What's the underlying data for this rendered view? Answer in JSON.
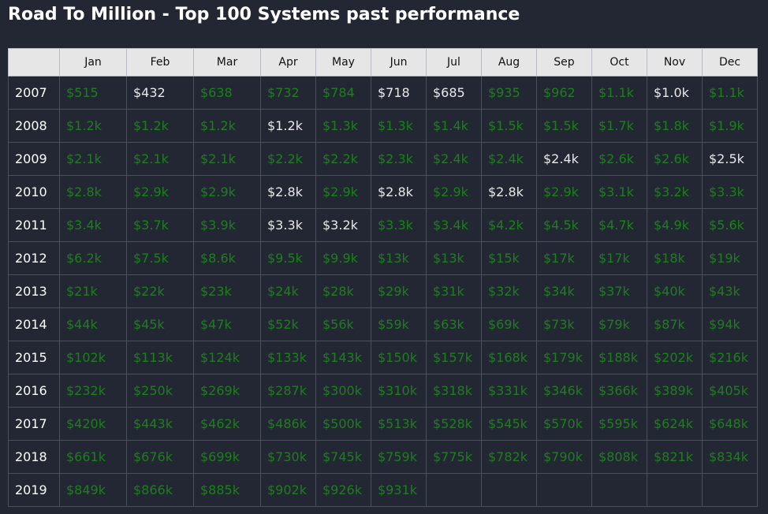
{
  "title": "Road To Million - Top 100 Systems past performance",
  "colors": {
    "up": "#1c7f1c",
    "neutral": "#e8e8e8",
    "header_bg": "#e6e6e6",
    "bg": "#232733"
  },
  "months": [
    "Jan",
    "Feb",
    "Mar",
    "Apr",
    "May",
    "Jun",
    "Jul",
    "Aug",
    "Sep",
    "Oct",
    "Nov",
    "Dec"
  ],
  "rows": [
    {
      "year": "2007",
      "cells": [
        {
          "v": "$515",
          "c": "g"
        },
        {
          "v": "$432",
          "c": "w"
        },
        {
          "v": "$638",
          "c": "g"
        },
        {
          "v": "$732",
          "c": "g"
        },
        {
          "v": "$784",
          "c": "g"
        },
        {
          "v": "$718",
          "c": "w"
        },
        {
          "v": "$685",
          "c": "w"
        },
        {
          "v": "$935",
          "c": "g"
        },
        {
          "v": "$962",
          "c": "g"
        },
        {
          "v": "$1.1k",
          "c": "g"
        },
        {
          "v": "$1.0k",
          "c": "w"
        },
        {
          "v": "$1.1k",
          "c": "g"
        }
      ]
    },
    {
      "year": "2008",
      "cells": [
        {
          "v": "$1.2k",
          "c": "g"
        },
        {
          "v": "$1.2k",
          "c": "g"
        },
        {
          "v": "$1.2k",
          "c": "g"
        },
        {
          "v": "$1.2k",
          "c": "w"
        },
        {
          "v": "$1.3k",
          "c": "g"
        },
        {
          "v": "$1.3k",
          "c": "g"
        },
        {
          "v": "$1.4k",
          "c": "g"
        },
        {
          "v": "$1.5k",
          "c": "g"
        },
        {
          "v": "$1.5k",
          "c": "g"
        },
        {
          "v": "$1.7k",
          "c": "g"
        },
        {
          "v": "$1.8k",
          "c": "g"
        },
        {
          "v": "$1.9k",
          "c": "g"
        }
      ]
    },
    {
      "year": "2009",
      "cells": [
        {
          "v": "$2.1k",
          "c": "g"
        },
        {
          "v": "$2.1k",
          "c": "g"
        },
        {
          "v": "$2.1k",
          "c": "g"
        },
        {
          "v": "$2.2k",
          "c": "g"
        },
        {
          "v": "$2.2k",
          "c": "g"
        },
        {
          "v": "$2.3k",
          "c": "g"
        },
        {
          "v": "$2.4k",
          "c": "g"
        },
        {
          "v": "$2.4k",
          "c": "g"
        },
        {
          "v": "$2.4k",
          "c": "w"
        },
        {
          "v": "$2.6k",
          "c": "g"
        },
        {
          "v": "$2.6k",
          "c": "g"
        },
        {
          "v": "$2.5k",
          "c": "w"
        }
      ]
    },
    {
      "year": "2010",
      "cells": [
        {
          "v": "$2.8k",
          "c": "g"
        },
        {
          "v": "$2.9k",
          "c": "g"
        },
        {
          "v": "$2.9k",
          "c": "g"
        },
        {
          "v": "$2.8k",
          "c": "w"
        },
        {
          "v": "$2.9k",
          "c": "g"
        },
        {
          "v": "$2.8k",
          "c": "w"
        },
        {
          "v": "$2.9k",
          "c": "g"
        },
        {
          "v": "$2.8k",
          "c": "w"
        },
        {
          "v": "$2.9k",
          "c": "g"
        },
        {
          "v": "$3.1k",
          "c": "g"
        },
        {
          "v": "$3.2k",
          "c": "g"
        },
        {
          "v": "$3.3k",
          "c": "g"
        }
      ]
    },
    {
      "year": "2011",
      "cells": [
        {
          "v": "$3.4k",
          "c": "g"
        },
        {
          "v": "$3.7k",
          "c": "g"
        },
        {
          "v": "$3.9k",
          "c": "g"
        },
        {
          "v": "$3.3k",
          "c": "w"
        },
        {
          "v": "$3.2k",
          "c": "w"
        },
        {
          "v": "$3.3k",
          "c": "g"
        },
        {
          "v": "$3.4k",
          "c": "g"
        },
        {
          "v": "$4.2k",
          "c": "g"
        },
        {
          "v": "$4.5k",
          "c": "g"
        },
        {
          "v": "$4.7k",
          "c": "g"
        },
        {
          "v": "$4.9k",
          "c": "g"
        },
        {
          "v": "$5.6k",
          "c": "g"
        }
      ]
    },
    {
      "year": "2012",
      "cells": [
        {
          "v": "$6.2k",
          "c": "g"
        },
        {
          "v": "$7.5k",
          "c": "g"
        },
        {
          "v": "$8.6k",
          "c": "g"
        },
        {
          "v": "$9.5k",
          "c": "g"
        },
        {
          "v": "$9.9k",
          "c": "g"
        },
        {
          "v": "$13k",
          "c": "g"
        },
        {
          "v": "$13k",
          "c": "g"
        },
        {
          "v": "$15k",
          "c": "g"
        },
        {
          "v": "$17k",
          "c": "g"
        },
        {
          "v": "$17k",
          "c": "g"
        },
        {
          "v": "$18k",
          "c": "g"
        },
        {
          "v": "$19k",
          "c": "g"
        }
      ]
    },
    {
      "year": "2013",
      "cells": [
        {
          "v": "$21k",
          "c": "g"
        },
        {
          "v": "$22k",
          "c": "g"
        },
        {
          "v": "$23k",
          "c": "g"
        },
        {
          "v": "$24k",
          "c": "g"
        },
        {
          "v": "$28k",
          "c": "g"
        },
        {
          "v": "$29k",
          "c": "g"
        },
        {
          "v": "$31k",
          "c": "g"
        },
        {
          "v": "$32k",
          "c": "g"
        },
        {
          "v": "$34k",
          "c": "g"
        },
        {
          "v": "$37k",
          "c": "g"
        },
        {
          "v": "$40k",
          "c": "g"
        },
        {
          "v": "$43k",
          "c": "g"
        }
      ]
    },
    {
      "year": "2014",
      "cells": [
        {
          "v": "$44k",
          "c": "g"
        },
        {
          "v": "$45k",
          "c": "g"
        },
        {
          "v": "$47k",
          "c": "g"
        },
        {
          "v": "$52k",
          "c": "g"
        },
        {
          "v": "$56k",
          "c": "g"
        },
        {
          "v": "$59k",
          "c": "g"
        },
        {
          "v": "$63k",
          "c": "g"
        },
        {
          "v": "$69k",
          "c": "g"
        },
        {
          "v": "$73k",
          "c": "g"
        },
        {
          "v": "$79k",
          "c": "g"
        },
        {
          "v": "$87k",
          "c": "g"
        },
        {
          "v": "$94k",
          "c": "g"
        }
      ]
    },
    {
      "year": "2015",
      "cells": [
        {
          "v": "$102k",
          "c": "g"
        },
        {
          "v": "$113k",
          "c": "g"
        },
        {
          "v": "$124k",
          "c": "g"
        },
        {
          "v": "$133k",
          "c": "g"
        },
        {
          "v": "$143k",
          "c": "g"
        },
        {
          "v": "$150k",
          "c": "g"
        },
        {
          "v": "$157k",
          "c": "g"
        },
        {
          "v": "$168k",
          "c": "g"
        },
        {
          "v": "$179k",
          "c": "g"
        },
        {
          "v": "$188k",
          "c": "g"
        },
        {
          "v": "$202k",
          "c": "g"
        },
        {
          "v": "$216k",
          "c": "g"
        }
      ]
    },
    {
      "year": "2016",
      "cells": [
        {
          "v": "$232k",
          "c": "g"
        },
        {
          "v": "$250k",
          "c": "g"
        },
        {
          "v": "$269k",
          "c": "g"
        },
        {
          "v": "$287k",
          "c": "g"
        },
        {
          "v": "$300k",
          "c": "g"
        },
        {
          "v": "$310k",
          "c": "g"
        },
        {
          "v": "$318k",
          "c": "g"
        },
        {
          "v": "$331k",
          "c": "g"
        },
        {
          "v": "$346k",
          "c": "g"
        },
        {
          "v": "$366k",
          "c": "g"
        },
        {
          "v": "$389k",
          "c": "g"
        },
        {
          "v": "$405k",
          "c": "g"
        }
      ]
    },
    {
      "year": "2017",
      "cells": [
        {
          "v": "$420k",
          "c": "g"
        },
        {
          "v": "$443k",
          "c": "g"
        },
        {
          "v": "$462k",
          "c": "g"
        },
        {
          "v": "$486k",
          "c": "g"
        },
        {
          "v": "$500k",
          "c": "g"
        },
        {
          "v": "$513k",
          "c": "g"
        },
        {
          "v": "$528k",
          "c": "g"
        },
        {
          "v": "$545k",
          "c": "g"
        },
        {
          "v": "$570k",
          "c": "g"
        },
        {
          "v": "$595k",
          "c": "g"
        },
        {
          "v": "$624k",
          "c": "g"
        },
        {
          "v": "$648k",
          "c": "g"
        }
      ]
    },
    {
      "year": "2018",
      "cells": [
        {
          "v": "$661k",
          "c": "g"
        },
        {
          "v": "$676k",
          "c": "g"
        },
        {
          "v": "$699k",
          "c": "g"
        },
        {
          "v": "$730k",
          "c": "g"
        },
        {
          "v": "$745k",
          "c": "g"
        },
        {
          "v": "$759k",
          "c": "g"
        },
        {
          "v": "$775k",
          "c": "g"
        },
        {
          "v": "$782k",
          "c": "g"
        },
        {
          "v": "$790k",
          "c": "g"
        },
        {
          "v": "$808k",
          "c": "g"
        },
        {
          "v": "$821k",
          "c": "g"
        },
        {
          "v": "$834k",
          "c": "g"
        }
      ]
    },
    {
      "year": "2019",
      "cells": [
        {
          "v": "$849k",
          "c": "g"
        },
        {
          "v": "$866k",
          "c": "g"
        },
        {
          "v": "$885k",
          "c": "g"
        },
        {
          "v": "$902k",
          "c": "g"
        },
        {
          "v": "$926k",
          "c": "g"
        },
        {
          "v": "$931k",
          "c": "g"
        },
        {
          "v": "",
          "c": "e"
        },
        {
          "v": "",
          "c": "e"
        },
        {
          "v": "",
          "c": "e"
        },
        {
          "v": "",
          "c": "e"
        },
        {
          "v": "",
          "c": "e"
        },
        {
          "v": "",
          "c": "e"
        }
      ]
    }
  ]
}
